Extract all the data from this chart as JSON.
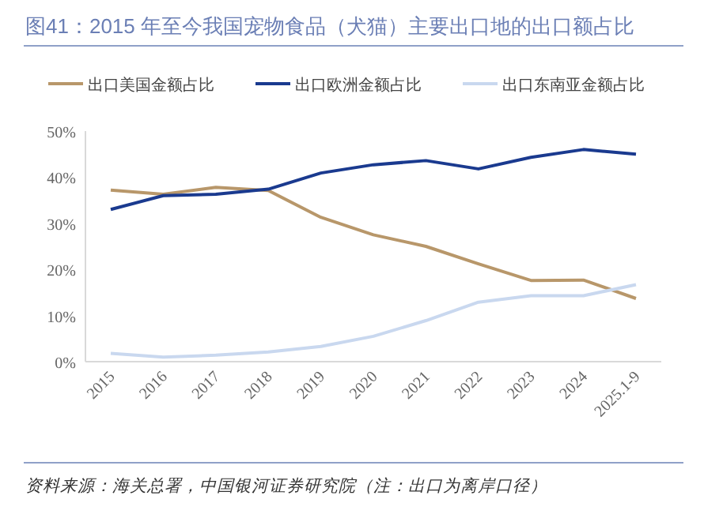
{
  "chart_data": {
    "type": "line",
    "title": "图41：2015 年至今我国宠物食品（犬猫）主要出口地的出口额占比",
    "categories": [
      "2015",
      "2016",
      "2017",
      "2018",
      "2019",
      "2020",
      "2021",
      "2022",
      "2023",
      "2024",
      "2025.1-9"
    ],
    "series": [
      {
        "name": "出口美国金额占比",
        "color": "#b8976a",
        "values": [
          37.2,
          36.3,
          37.8,
          37.1,
          31.3,
          27.5,
          25.0,
          21.2,
          17.6,
          17.7,
          13.7
        ]
      },
      {
        "name": "出口欧洲金额占比",
        "color": "#1a3a8f",
        "values": [
          33.0,
          36.0,
          36.3,
          37.4,
          40.9,
          42.7,
          43.6,
          41.8,
          44.3,
          46.0,
          45.0
        ]
      },
      {
        "name": "出口东南亚金额占比",
        "color": "#c9d8ef",
        "values": [
          1.8,
          1.0,
          1.4,
          2.1,
          3.3,
          5.5,
          8.9,
          12.9,
          14.3,
          14.3,
          16.7
        ]
      }
    ],
    "ylim": [
      0,
      50
    ],
    "yticks": [
      {
        "value": 0,
        "label": "0%"
      },
      {
        "value": 10,
        "label": "10%"
      },
      {
        "value": 20,
        "label": "20%"
      },
      {
        "value": 30,
        "label": "30%"
      },
      {
        "value": 40,
        "label": "40%"
      },
      {
        "value": 50,
        "label": "50%"
      }
    ],
    "grid": false,
    "legend": "top",
    "marker": "none",
    "line_style": "solid",
    "annotations": [
      "资料来源：海关总署，中国银河证券研究院（注：出口为离岸口径）"
    ]
  }
}
